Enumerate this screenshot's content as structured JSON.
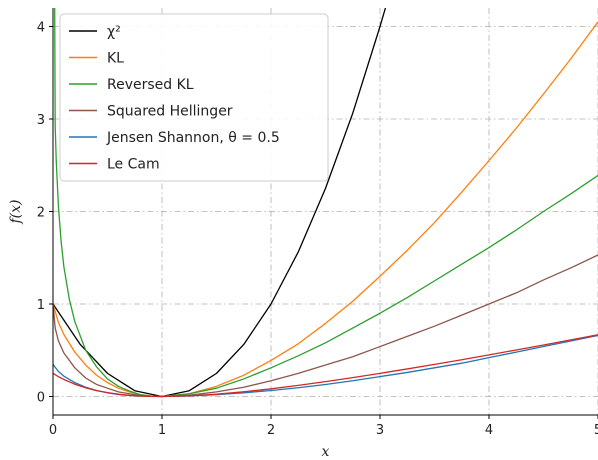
{
  "chart_data": {
    "type": "line",
    "xlabel": "x",
    "ylabel": "f(x)",
    "xlim": [
      0,
      5
    ],
    "ylim": [
      -0.2,
      4.2
    ],
    "xticks": [
      0,
      1,
      2,
      3,
      4,
      5
    ],
    "yticks": [
      0,
      1,
      2,
      3,
      4
    ],
    "grid": true,
    "legend_position": "top-left",
    "series": [
      {
        "name": "χ²",
        "color": "#000000",
        "x": [
          0,
          0.25,
          0.5,
          0.75,
          1.0,
          1.25,
          1.5,
          1.75,
          2.0,
          2.25,
          2.5,
          2.75,
          3.0,
          3.05
        ],
        "y": [
          1.0,
          0.5625,
          0.25,
          0.0625,
          0.0,
          0.0625,
          0.25,
          0.5625,
          1.0,
          1.5625,
          2.25,
          3.0625,
          4.0,
          4.2
        ]
      },
      {
        "name": "KL",
        "color": "#ff7f0e",
        "x": [
          0,
          0.05,
          0.1,
          0.2,
          0.3,
          0.4,
          0.5,
          0.6,
          0.7,
          0.8,
          0.9,
          1.0,
          1.25,
          1.5,
          1.75,
          2.0,
          2.25,
          2.5,
          2.75,
          3.0,
          3.25,
          3.5,
          3.75,
          4.0,
          4.25,
          4.5,
          4.75,
          5.0
        ],
        "y": [
          1.0,
          0.8,
          0.67,
          0.48,
          0.34,
          0.23,
          0.15,
          0.09,
          0.05,
          0.02,
          0.005,
          0.0,
          0.03,
          0.11,
          0.23,
          0.39,
          0.57,
          0.79,
          1.03,
          1.3,
          1.58,
          1.88,
          2.21,
          2.55,
          2.9,
          3.27,
          3.65,
          4.05
        ]
      },
      {
        "name": "Reversed KL",
        "color": "#2ca02c",
        "x": [
          0.0155,
          0.02,
          0.03,
          0.05,
          0.075,
          0.1,
          0.15,
          0.2,
          0.3,
          0.4,
          0.5,
          0.6,
          0.7,
          0.8,
          0.9,
          1.0,
          1.25,
          1.5,
          1.75,
          2.0,
          2.25,
          2.5,
          2.75,
          3.0,
          3.25,
          3.5,
          3.75,
          4.0,
          4.25,
          4.5,
          4.75,
          5.0
        ],
        "y": [
          4.2,
          2.93,
          2.54,
          2.05,
          1.67,
          1.4,
          1.05,
          0.81,
          0.5,
          0.32,
          0.19,
          0.11,
          0.06,
          0.02,
          0.005,
          0.0,
          0.03,
          0.09,
          0.19,
          0.31,
          0.44,
          0.58,
          0.74,
          0.9,
          1.07,
          1.25,
          1.43,
          1.61,
          1.8,
          2.0,
          2.19,
          2.39
        ]
      },
      {
        "name": "Squared Hellinger",
        "color": "#8c564b",
        "x": [
          0,
          0.02,
          0.05,
          0.1,
          0.2,
          0.3,
          0.4,
          0.5,
          0.6,
          0.7,
          0.8,
          0.9,
          1.0,
          1.25,
          1.5,
          1.75,
          2.0,
          2.25,
          2.5,
          2.75,
          3.0,
          3.25,
          3.5,
          3.75,
          4.0,
          4.25,
          4.5,
          4.75,
          5.0
        ],
        "y": [
          1.0,
          0.74,
          0.6,
          0.47,
          0.31,
          0.2,
          0.13,
          0.09,
          0.05,
          0.03,
          0.01,
          0.003,
          0.0,
          0.014,
          0.05,
          0.1,
          0.17,
          0.25,
          0.34,
          0.43,
          0.54,
          0.65,
          0.76,
          0.88,
          1.0,
          1.12,
          1.26,
          1.39,
          1.53
        ]
      },
      {
        "name": "Jensen Shannon, θ = 0.5",
        "color": "#1f77b4",
        "x": [
          0,
          0.05,
          0.1,
          0.2,
          0.3,
          0.4,
          0.5,
          0.6,
          0.7,
          0.8,
          0.9,
          1.0,
          1.25,
          1.5,
          1.75,
          2.0,
          2.25,
          2.5,
          2.75,
          3.0,
          3.25,
          3.5,
          3.75,
          4.0,
          4.25,
          4.5,
          4.75,
          5.0
        ],
        "y": [
          0.347,
          0.27,
          0.22,
          0.15,
          0.1,
          0.065,
          0.04,
          0.022,
          0.011,
          0.005,
          0.001,
          0.0,
          0.006,
          0.02,
          0.04,
          0.065,
          0.095,
          0.13,
          0.17,
          0.215,
          0.26,
          0.31,
          0.36,
          0.42,
          0.48,
          0.54,
          0.6,
          0.66
        ]
      },
      {
        "name": "Le Cam",
        "color": "#d62728",
        "x": [
          0,
          0.05,
          0.1,
          0.2,
          0.3,
          0.4,
          0.5,
          0.6,
          0.7,
          0.8,
          0.9,
          1.0,
          1.25,
          1.5,
          1.75,
          2.0,
          2.25,
          2.5,
          2.75,
          3.0,
          3.25,
          3.5,
          3.75,
          4.0,
          4.25,
          4.5,
          4.75,
          5.0
        ],
        "y": [
          0.25,
          0.214,
          0.184,
          0.133,
          0.094,
          0.064,
          0.042,
          0.025,
          0.013,
          0.006,
          0.001,
          0.0,
          0.007,
          0.025,
          0.051,
          0.083,
          0.12,
          0.161,
          0.204,
          0.25,
          0.298,
          0.347,
          0.397,
          0.45,
          0.503,
          0.557,
          0.612,
          0.667
        ]
      }
    ]
  }
}
